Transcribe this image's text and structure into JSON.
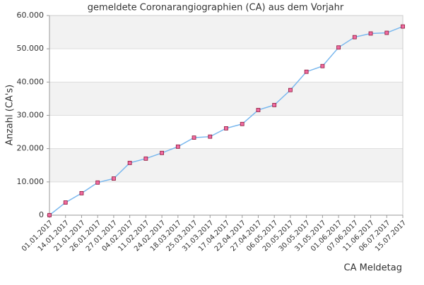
{
  "chart_data": {
    "type": "line",
    "title": "gemeldete Coronarangiographien (CA) aus dem Vorjahr",
    "y_label": "Anzahl (CA's)",
    "x_label": "CA Meldetag",
    "categories": [
      "01.01.2017",
      "14.01.2017",
      "21.01.2017",
      "26.01.2017",
      "27.01.2017",
      "04.02.2017",
      "11.02.2017",
      "24.02.2017",
      "18.03.2017",
      "25.03.2017",
      "31.03.2017",
      "17.04.2017",
      "22.04.2017",
      "27.04.2017",
      "06.05.2017",
      "20.05.2017",
      "30.05.2017",
      "31.05.2017",
      "01.06.2017",
      "07.06.2017",
      "11.06.2017",
      "06.07.2017",
      "15.07.2017"
    ],
    "values": [
      0,
      3800,
      6600,
      9800,
      11000,
      15700,
      17000,
      18700,
      20600,
      23300,
      23600,
      26100,
      27400,
      31600,
      33100,
      37600,
      43100,
      44800,
      50400,
      53500,
      54600,
      54800,
      56700
    ],
    "color": "#7ab8ee",
    "marker_color": "#f06aa0",
    "ylim": [
      0,
      60000
    ],
    "yticks": [
      0,
      {
        "value": 10000,
        "label": "10.000"
      },
      {
        "value": 20000,
        "label": "20.000"
      },
      {
        "value": 30000,
        "label": "30.000"
      },
      {
        "value": 40000,
        "label": "40.000"
      },
      {
        "value": 50000,
        "label": "50.000"
      },
      {
        "value": 60000,
        "label": "60.000"
      }
    ],
    "grid": true
  }
}
